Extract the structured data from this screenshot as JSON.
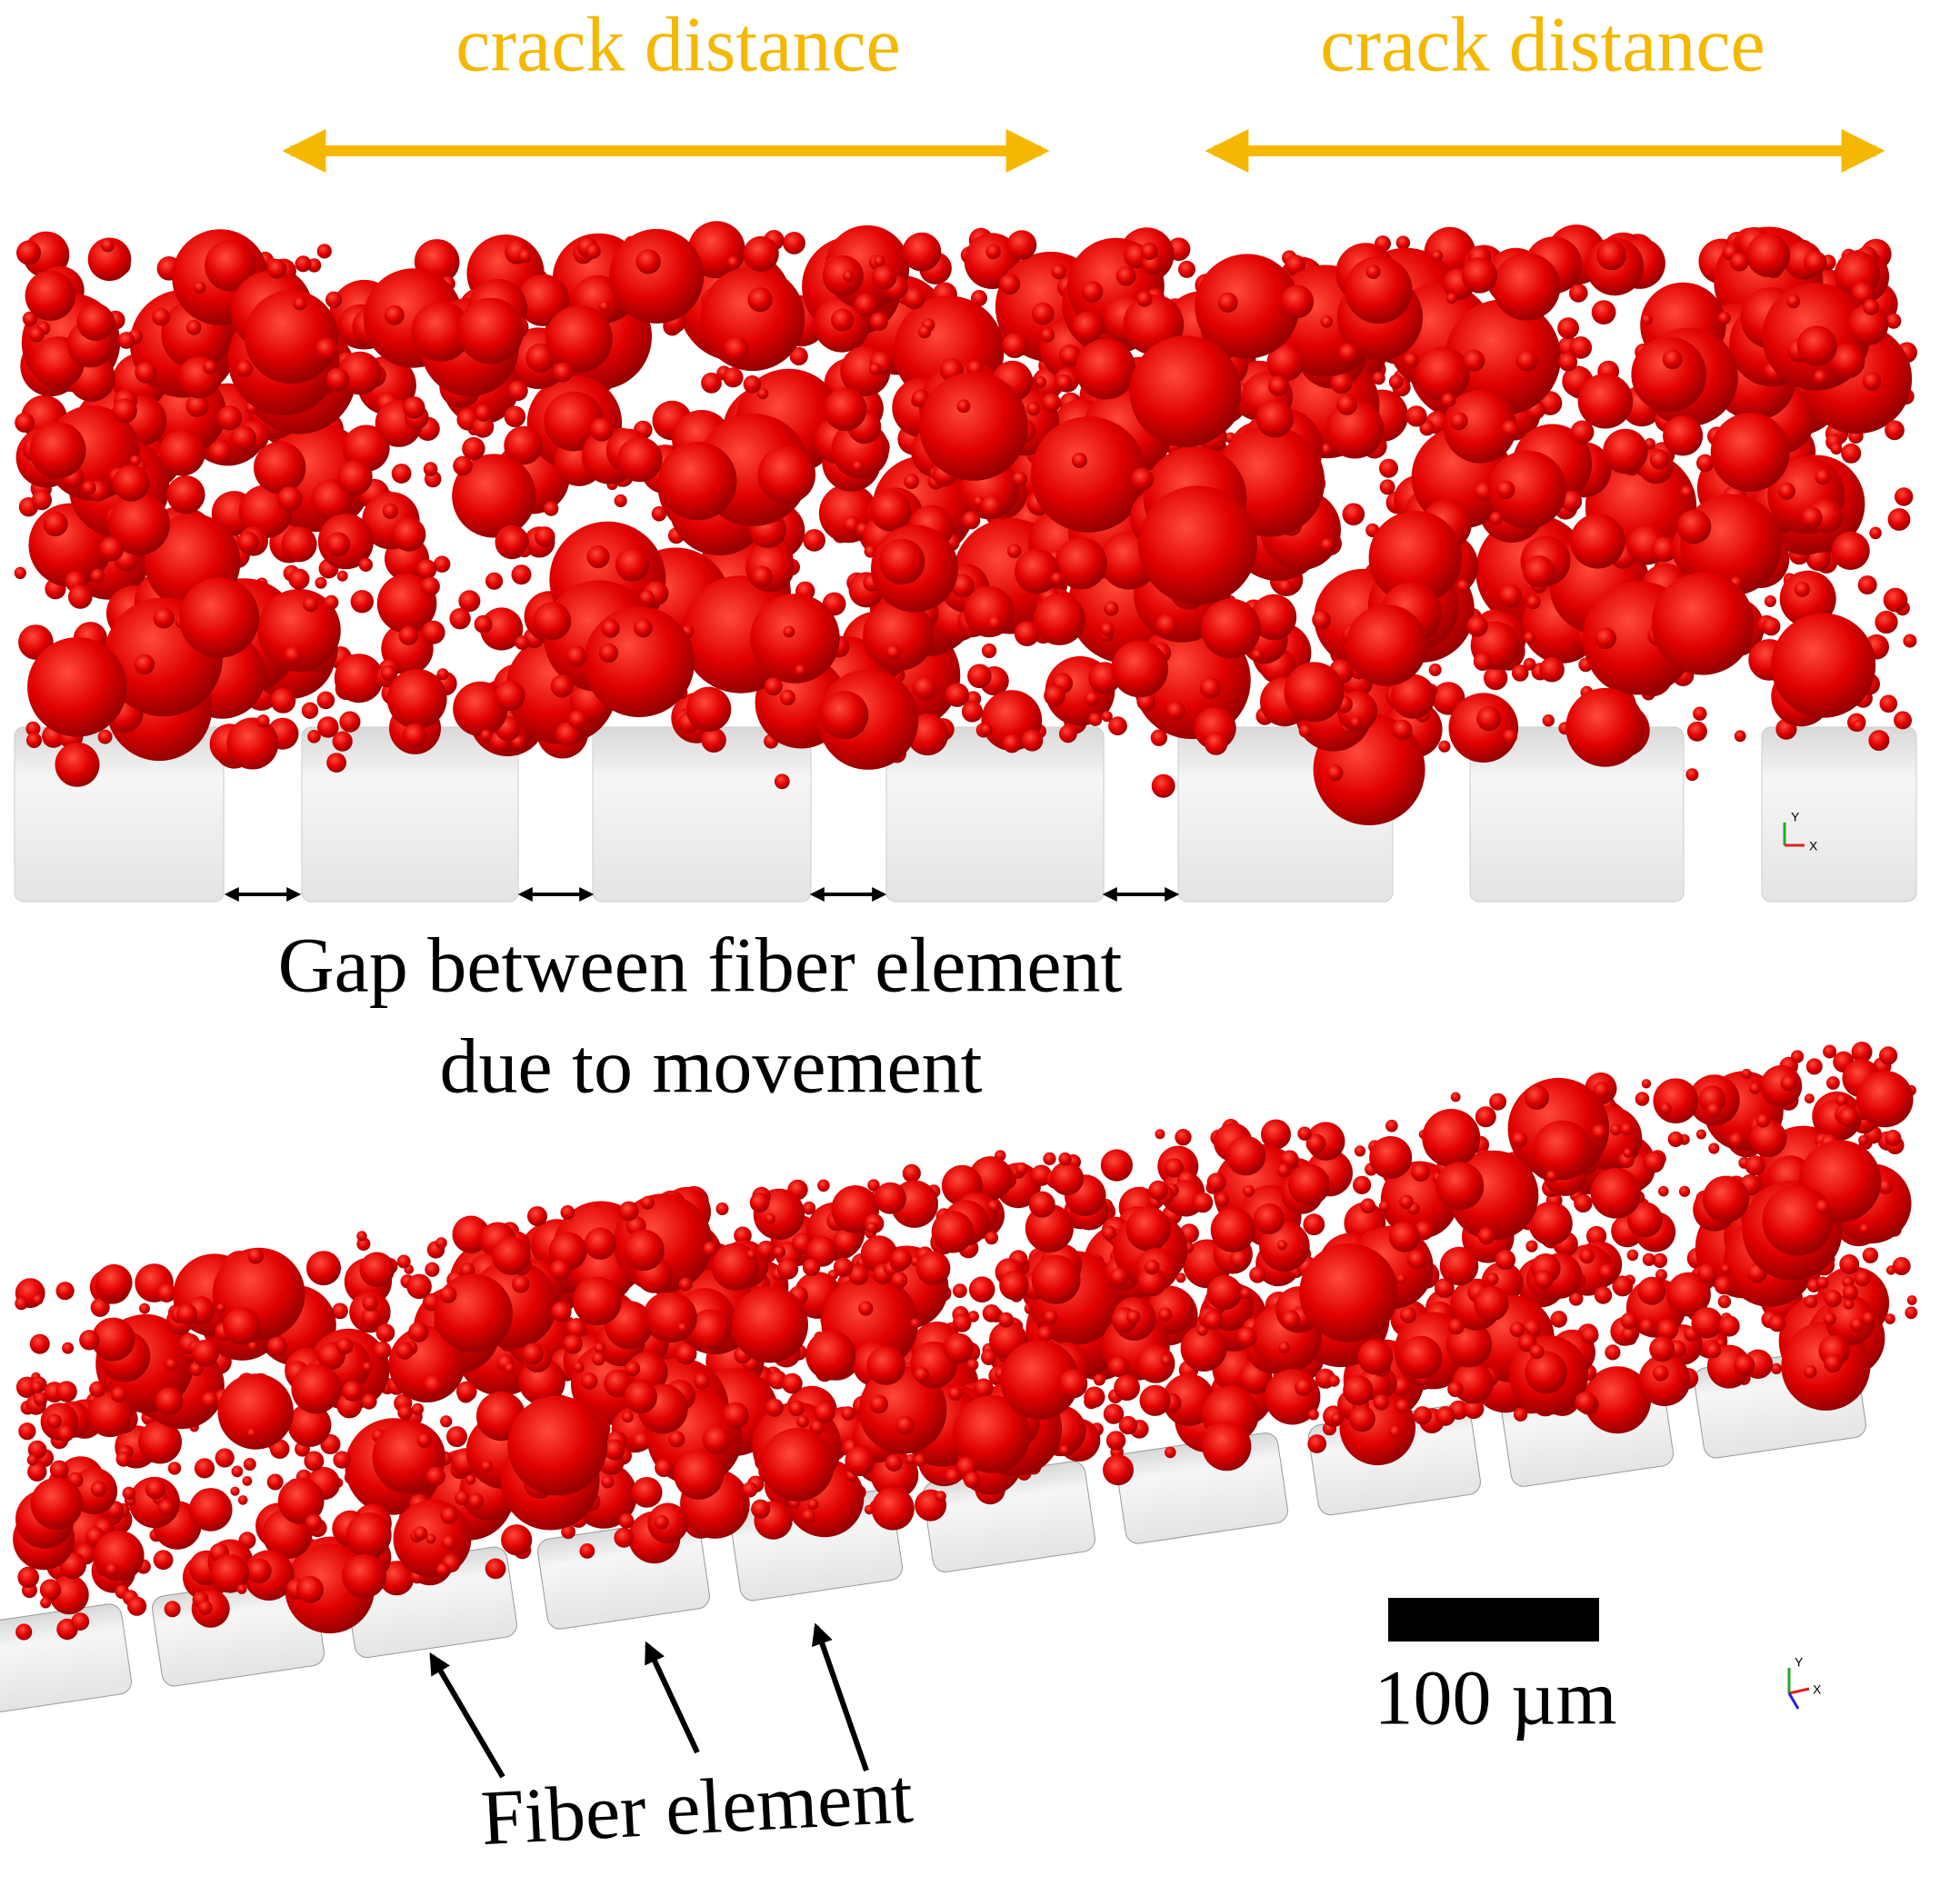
{
  "annotations": {
    "crack_labels": [
      "crack distance",
      "crack distance"
    ],
    "gap_label": [
      "Gap between fiber element",
      "due to movement"
    ],
    "scale_bar_label": "100 µm",
    "fiber_label": "Fiber element",
    "axis_triads": [
      {
        "y": "Y",
        "x": "X"
      },
      {
        "y": "Y",
        "x": "X"
      }
    ]
  }
}
